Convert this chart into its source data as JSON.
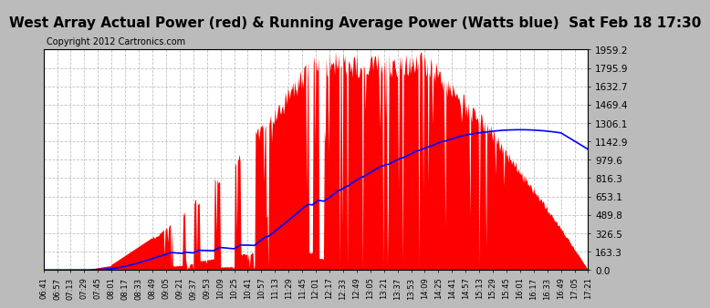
{
  "title": "West Array Actual Power (red) & Running Average Power (Watts blue)  Sat Feb 18 17:30",
  "copyright": "Copyright 2012 Cartronics.com",
  "ytick_labels": [
    "0.0",
    "163.3",
    "326.5",
    "489.8",
    "653.1",
    "816.3",
    "979.6",
    "1142.9",
    "1306.1",
    "1469.4",
    "1632.7",
    "1795.9",
    "1959.2"
  ],
  "ytick_values": [
    0.0,
    163.3,
    326.5,
    489.8,
    653.1,
    816.3,
    979.6,
    1142.9,
    1306.1,
    1469.4,
    1632.7,
    1795.9,
    1959.2
  ],
  "ymax": 1959.2,
  "xtick_labels": [
    "06:41",
    "06:57",
    "07:13",
    "07:29",
    "07:45",
    "08:01",
    "08:17",
    "08:33",
    "08:49",
    "09:05",
    "09:21",
    "09:37",
    "09:53",
    "10:09",
    "10:25",
    "10:41",
    "10:57",
    "11:13",
    "11:29",
    "11:45",
    "12:01",
    "12:17",
    "12:33",
    "12:49",
    "13:05",
    "13:21",
    "13:37",
    "13:53",
    "14:09",
    "14:25",
    "14:41",
    "14:57",
    "15:13",
    "15:29",
    "15:45",
    "16:01",
    "16:17",
    "16:33",
    "16:49",
    "17:05",
    "17:21"
  ],
  "red_color": "#FF0000",
  "blue_color": "#0000FF",
  "bg_color": "#FFFFFF",
  "grid_color": "#BBBBBB",
  "outer_bg": "#BBBBBB",
  "title_fontsize": 11,
  "copyright_fontsize": 7,
  "ytick_fontsize": 7.5,
  "xtick_fontsize": 6
}
